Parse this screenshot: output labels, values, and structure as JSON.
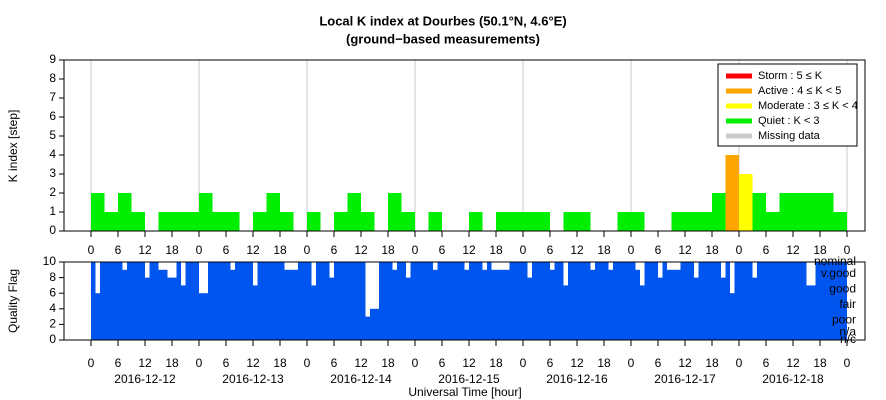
{
  "chart_data": [
    {
      "type": "bar",
      "title": "Local K index at Dourbes (50.1°N, 4.6°E)",
      "subtitle": "(ground−based measurements)",
      "ylabel": "K index [step]",
      "x": [
        0,
        3,
        6,
        9,
        12,
        15,
        18,
        21,
        24,
        27,
        30,
        33,
        36,
        39,
        42,
        45,
        48,
        51,
        54,
        57,
        60,
        63,
        66,
        69,
        72,
        75,
        78,
        81,
        84,
        87,
        90,
        93,
        96,
        99,
        102,
        105,
        108,
        111,
        114,
        117,
        120,
        123,
        126,
        129,
        132,
        135,
        138,
        141,
        144,
        147,
        150,
        153,
        156,
        159,
        162,
        165
      ],
      "values": [
        2,
        1,
        2,
        1,
        0,
        1,
        1,
        1,
        2,
        1,
        1,
        0,
        1,
        2,
        1,
        0,
        1,
        0,
        1,
        2,
        1,
        0,
        2,
        1,
        0,
        1,
        0,
        0,
        1,
        0,
        1,
        1,
        1,
        1,
        0,
        1,
        1,
        0,
        0,
        1,
        1,
        0,
        0,
        1,
        1,
        1,
        2,
        4,
        3,
        2,
        1,
        2,
        2,
        2,
        2,
        1
      ],
      "colors": [
        "#00ee00",
        "#00ee00",
        "#00ee00",
        "#00ee00",
        "#00ee00",
        "#00ee00",
        "#00ee00",
        "#00ee00",
        "#00ee00",
        "#00ee00",
        "#00ee00",
        "#00ee00",
        "#00ee00",
        "#00ee00",
        "#00ee00",
        "#00ee00",
        "#00ee00",
        "#00ee00",
        "#00ee00",
        "#00ee00",
        "#00ee00",
        "#00ee00",
        "#00ee00",
        "#00ee00",
        "#00ee00",
        "#00ee00",
        "#00ee00",
        "#00ee00",
        "#00ee00",
        "#00ee00",
        "#00ee00",
        "#00ee00",
        "#00ee00",
        "#00ee00",
        "#00ee00",
        "#00ee00",
        "#00ee00",
        "#00ee00",
        "#00ee00",
        "#00ee00",
        "#00ee00",
        "#00ee00",
        "#00ee00",
        "#00ee00",
        "#00ee00",
        "#00ee00",
        "#00ee00",
        "#ffa500",
        "#ffff00",
        "#00ee00",
        "#00ee00",
        "#00ee00",
        "#00ee00",
        "#00ee00",
        "#00ee00",
        "#00ee00"
      ],
      "xlim": [
        -6,
        172
      ],
      "ylim": [
        0,
        9
      ],
      "yticks": [
        0,
        1,
        2,
        3,
        4,
        5,
        6,
        7,
        8,
        9
      ],
      "xticks": [
        {
          "value": 0,
          "label": "0"
        },
        {
          "value": 6,
          "label": "6"
        },
        {
          "value": 12,
          "label": "12"
        },
        {
          "value": 18,
          "label": "18"
        },
        {
          "value": 24,
          "label": "0"
        },
        {
          "value": 30,
          "label": "6"
        },
        {
          "value": 36,
          "label": "12"
        },
        {
          "value": 42,
          "label": "18"
        },
        {
          "value": 48,
          "label": "0"
        },
        {
          "value": 54,
          "label": "6"
        },
        {
          "value": 60,
          "label": "12"
        },
        {
          "value": 66,
          "label": "18"
        },
        {
          "value": 72,
          "label": "0"
        },
        {
          "value": 78,
          "label": "6"
        },
        {
          "value": 84,
          "label": "12"
        },
        {
          "value": 90,
          "label": "18"
        },
        {
          "value": 96,
          "label": "0"
        },
        {
          "value": 102,
          "label": "6"
        },
        {
          "value": 108,
          "label": "12"
        },
        {
          "value": 114,
          "label": "18"
        },
        {
          "value": 120,
          "label": "0"
        },
        {
          "value": 126,
          "label": "6"
        },
        {
          "value": 132,
          "label": "12"
        },
        {
          "value": 138,
          "label": "18"
        },
        {
          "value": 144,
          "label": "0"
        },
        {
          "value": 150,
          "label": "6"
        },
        {
          "value": 156,
          "label": "12"
        },
        {
          "value": 162,
          "label": "18"
        },
        {
          "value": 168,
          "label": "0"
        }
      ],
      "xgrid": [
        0,
        24,
        48,
        72,
        96,
        120,
        144,
        168
      ],
      "legend": [
        {
          "name": "Storm : 5 ≤ K",
          "color": "#ff0000"
        },
        {
          "name": "Active : 4 ≤ K < 5",
          "color": "#ffa500"
        },
        {
          "name": "Moderate : 3 ≤ K < 4",
          "color": "#ffff00"
        },
        {
          "name": "Quiet : K < 3",
          "color": "#00ee00"
        },
        {
          "name": "Missing data",
          "color": "#cccccc"
        }
      ],
      "legend_position": "upper right"
    },
    {
      "type": "bar",
      "ylabel": "Quality Flag",
      "xlabel": "Universal Time [hour]",
      "color": "#0055ee",
      "x": [
        0,
        1,
        2,
        3,
        4,
        5,
        6,
        7,
        8,
        9,
        10,
        11,
        12,
        13,
        14,
        15,
        16,
        17,
        18,
        19,
        20,
        21,
        22,
        23,
        24,
        25,
        26,
        27,
        28,
        29,
        30,
        31,
        32,
        33,
        34,
        35,
        36,
        37,
        38,
        39,
        40,
        41,
        42,
        43,
        44,
        45,
        46,
        47,
        48,
        49,
        50,
        51,
        52,
        53,
        54,
        55,
        56,
        57,
        58,
        59,
        60,
        61,
        62,
        63,
        64,
        65,
        66,
        67,
        68,
        69,
        70,
        71,
        72,
        73,
        74,
        75,
        76,
        77,
        78,
        79,
        80,
        81,
        82,
        83,
        84,
        85,
        86,
        87,
        88,
        89,
        90,
        91,
        92,
        93,
        94,
        95,
        96,
        97,
        98,
        99,
        100,
        101,
        102,
        103,
        104,
        105,
        106,
        107,
        108,
        109,
        110,
        111,
        112,
        113,
        114,
        115,
        116,
        117,
        118,
        119,
        120,
        121,
        122,
        123,
        124,
        125,
        126,
        127,
        128,
        129,
        130,
        131,
        132,
        133,
        134,
        135,
        136,
        137,
        138,
        139,
        140,
        141,
        142,
        143,
        144,
        145,
        146,
        147,
        148,
        149,
        150,
        151,
        152,
        153,
        154,
        155,
        156,
        157,
        158,
        159,
        160,
        161,
        162,
        163,
        164,
        165,
        166,
        167
      ],
      "values": [
        10,
        6,
        10,
        10,
        10,
        10,
        10,
        9,
        10,
        10,
        10,
        10,
        8,
        10,
        10,
        9,
        9,
        8,
        8,
        10,
        7,
        10,
        10,
        10,
        6,
        6,
        10,
        10,
        10,
        10,
        10,
        9,
        10,
        10,
        10,
        10,
        7,
        10,
        10,
        10,
        10,
        10,
        10,
        9,
        9,
        9,
        10,
        10,
        10,
        7,
        10,
        10,
        10,
        8,
        10,
        10,
        10,
        10,
        10,
        10,
        10,
        3,
        4,
        4,
        10,
        10,
        10,
        9,
        10,
        10,
        8,
        10,
        10,
        10,
        10,
        10,
        9,
        10,
        10,
        10,
        10,
        10,
        10,
        9,
        10,
        10,
        10,
        9,
        10,
        9,
        9,
        9,
        9,
        10,
        10,
        10,
        10,
        8,
        10,
        10,
        10,
        10,
        9,
        10,
        10,
        7,
        10,
        10,
        10,
        10,
        10,
        9,
        10,
        10,
        10,
        9,
        10,
        10,
        10,
        10,
        10,
        9,
        7,
        10,
        10,
        10,
        8,
        10,
        9,
        9,
        9,
        10,
        10,
        10,
        8,
        10,
        10,
        10,
        10,
        10,
        8,
        10,
        6,
        10,
        10,
        10,
        10,
        8,
        10,
        10,
        10,
        10,
        10,
        10,
        10,
        10,
        10,
        10,
        10,
        7,
        7,
        10,
        10,
        10,
        10,
        10,
        10,
        10
      ],
      "xlim": [
        -6,
        172
      ],
      "ylim": [
        0,
        10
      ],
      "yticks": [
        0,
        2,
        4,
        6,
        8,
        10
      ],
      "xticks": [
        {
          "value": 0,
          "label": "0"
        },
        {
          "value": 6,
          "label": "6"
        },
        {
          "value": 12,
          "label": "12"
        },
        {
          "value": 18,
          "label": "18"
        },
        {
          "value": 24,
          "label": "0"
        },
        {
          "value": 30,
          "label": "6"
        },
        {
          "value": 36,
          "label": "12"
        },
        {
          "value": 42,
          "label": "18"
        },
        {
          "value": 48,
          "label": "0"
        },
        {
          "value": 54,
          "label": "6"
        },
        {
          "value": 60,
          "label": "12"
        },
        {
          "value": 66,
          "label": "18"
        },
        {
          "value": 72,
          "label": "0"
        },
        {
          "value": 78,
          "label": "6"
        },
        {
          "value": 84,
          "label": "12"
        },
        {
          "value": 90,
          "label": "18"
        },
        {
          "value": 96,
          "label": "0"
        },
        {
          "value": 102,
          "label": "6"
        },
        {
          "value": 108,
          "label": "12"
        },
        {
          "value": 114,
          "label": "18"
        },
        {
          "value": 120,
          "label": "0"
        },
        {
          "value": 126,
          "label": "6"
        },
        {
          "value": 132,
          "label": "12"
        },
        {
          "value": 138,
          "label": "18"
        },
        {
          "value": 144,
          "label": "0"
        },
        {
          "value": 150,
          "label": "6"
        },
        {
          "value": 156,
          "label": "12"
        },
        {
          "value": 162,
          "label": "18"
        },
        {
          "value": 168,
          "label": "0"
        }
      ],
      "dates": [
        {
          "value": 12,
          "label": "2016-12-12"
        },
        {
          "value": 36,
          "label": "2016-12-13"
        },
        {
          "value": 60,
          "label": "2016-12-14"
        },
        {
          "value": 84,
          "label": "2016-12-15"
        },
        {
          "value": 108,
          "label": "2016-12-16"
        },
        {
          "value": 132,
          "label": "2016-12-17"
        },
        {
          "value": 156,
          "label": "2016-12-18"
        }
      ],
      "quality_levels": [
        {
          "value": 10,
          "label": "nominal"
        },
        {
          "value": 8.5,
          "label": "v.good"
        },
        {
          "value": 6.5,
          "label": "good"
        },
        {
          "value": 4.5,
          "label": "fair"
        },
        {
          "value": 2.5,
          "label": "poor"
        },
        {
          "value": 1,
          "label": "n/a"
        },
        {
          "value": 0,
          "label": "n/c"
        }
      ]
    }
  ]
}
